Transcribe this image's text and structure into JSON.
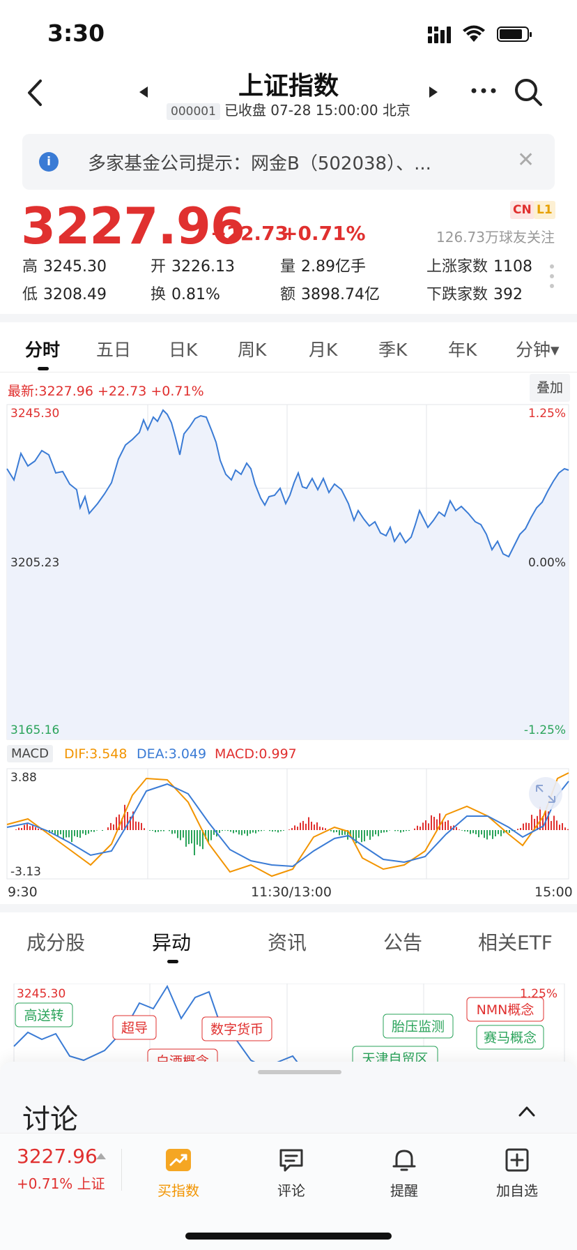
{
  "status": {
    "time": "3:30"
  },
  "header": {
    "title": "上证指数",
    "code": "000001",
    "status_text": "已收盘 07-28 15:00:00 北京"
  },
  "notice": {
    "text": "多家基金公司提示：网金B（502038）、..."
  },
  "quote": {
    "price": "3227.96",
    "change": "+22.73",
    "change_pct": "+0.71%",
    "badge_cn": "CN",
    "badge_l1": "L1",
    "followers": "126.73万球友关注",
    "stats": [
      {
        "label": "高",
        "value": "3245.30"
      },
      {
        "label": "开",
        "value": "3226.13"
      },
      {
        "label": "量",
        "value": "2.89亿手"
      },
      {
        "label": "上涨家数",
        "value": "1108"
      },
      {
        "label": "低",
        "value": "3208.49"
      },
      {
        "label": "换",
        "value": "0.81%"
      },
      {
        "label": "额",
        "value": "3898.74亿"
      },
      {
        "label": "下跌家数",
        "value": "392"
      }
    ]
  },
  "period_tabs": [
    "分时",
    "五日",
    "日K",
    "周K",
    "月K",
    "季K",
    "年K",
    "分钟▾"
  ],
  "chart": {
    "latest_label": "最新:3227.96 +22.73 +0.71%",
    "overlay_button": "叠加",
    "y_labels": {
      "top": "3245.30",
      "mid": "3205.23",
      "bottom": "3165.16"
    },
    "pct_labels": {
      "top": "1.25%",
      "mid": "0.00%",
      "bottom": "-1.25%"
    },
    "colors": {
      "line": "#3a7bd5",
      "fill": "#eef2fb",
      "up": "#e0302f",
      "down": "#2aa35a"
    }
  },
  "macd": {
    "label": "MACD",
    "dif": "DIF:3.548",
    "dea": "DEA:3.049",
    "macd": "MACD:0.997",
    "y_top": "3.88",
    "y_bottom": "-3.13"
  },
  "time_labels": [
    "9:30",
    "11:30/13:00",
    "15:00"
  ],
  "bottom_tabs": [
    "成分股",
    "异动",
    "资讯",
    "公告",
    "相关ETF"
  ],
  "mini_chart": {
    "top_label": "3245.30",
    "pct_label": "1.25%",
    "tags": [
      {
        "text": "高送转",
        "color": "green"
      },
      {
        "text": "超导",
        "color": "red"
      },
      {
        "text": "数字货币",
        "color": "red"
      },
      {
        "text": "白酒概念",
        "color": "red"
      },
      {
        "text": "胎压监测",
        "color": "green"
      },
      {
        "text": "天津自贸区",
        "color": "green"
      },
      {
        "text": "NMN概念",
        "color": "red"
      },
      {
        "text": "赛马概念",
        "color": "green"
      }
    ]
  },
  "discussion": {
    "title": "讨论",
    "price": "3227.96",
    "sub_pct": "+0.71%",
    "sub_name": "上证",
    "actions": [
      "买指数",
      "评论",
      "提醒",
      "加自选"
    ]
  }
}
